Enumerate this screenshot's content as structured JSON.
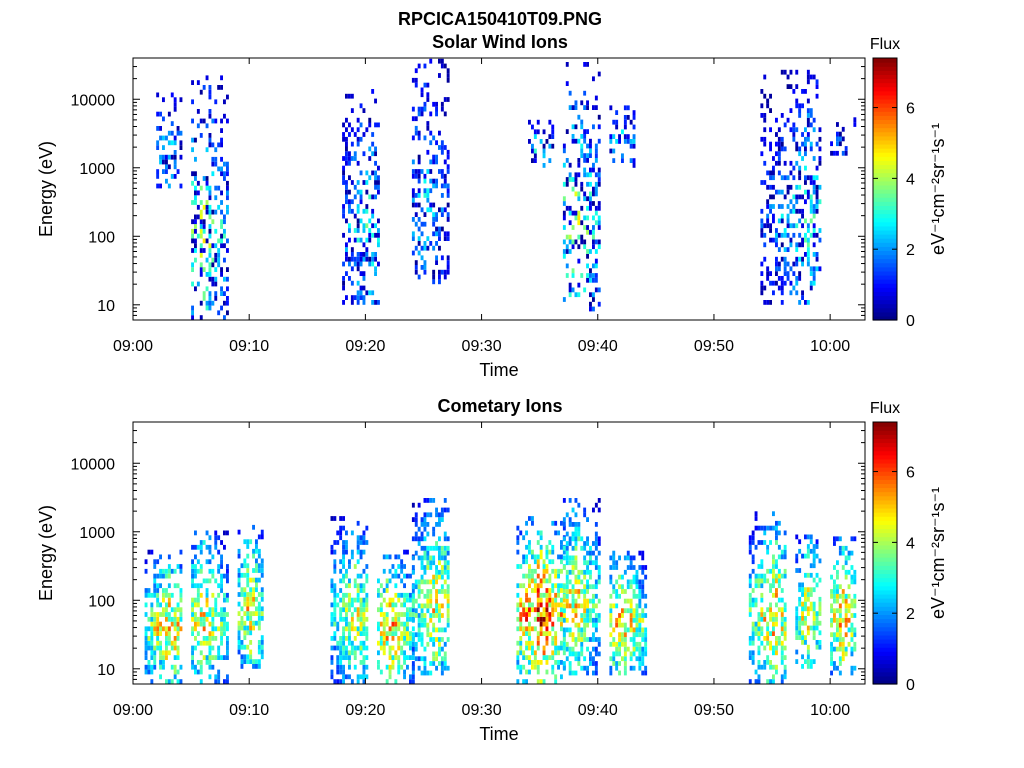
{
  "figure": {
    "filename": "RPCICA150410T09.PNG"
  },
  "colorbar": {
    "title": "Flux",
    "unit_label": "eV⁻¹cm⁻²sr⁻¹s⁻¹",
    "ticks": [
      "0",
      "2",
      "4",
      "6"
    ],
    "range": [
      0,
      7.4
    ],
    "colormap": "jet"
  },
  "chart_data": [
    {
      "type": "heatmap",
      "title": "Solar Wind Ions",
      "xlabel": "Time",
      "ylabel": "Energy (eV)",
      "x_ticks": [
        "09:00",
        "09:10",
        "09:20",
        "09:30",
        "09:40",
        "09:50",
        "10:00"
      ],
      "y_ticks": [
        "10",
        "100",
        "1000",
        "10000"
      ],
      "xlim": [
        "09:00",
        "10:03"
      ],
      "ylim": [
        6,
        40000
      ],
      "y_scale": "log",
      "grid": false,
      "series": [
        {
          "center": "09:06",
          "t_min": "09:05",
          "t_max": "09:08",
          "e_min": 6,
          "e_max": 20000,
          "peak_flux": 4.5
        },
        {
          "center": "09:03",
          "t_min": "09:02",
          "t_max": "09:04",
          "e_min": 500,
          "e_max": 12000,
          "peak_flux": 3
        },
        {
          "center": "09:20",
          "t_min": "09:18",
          "t_max": "09:21",
          "e_min": 10,
          "e_max": 15000,
          "peak_flux": 3.5
        },
        {
          "center": "09:25",
          "t_min": "09:24",
          "t_max": "09:27",
          "e_min": 20,
          "e_max": 40000,
          "peak_flux": 3
        },
        {
          "center": "09:35",
          "t_min": "09:34",
          "t_max": "09:36",
          "e_min": 1000,
          "e_max": 5000,
          "peak_flux": 3.5
        },
        {
          "center": "09:38",
          "t_min": "09:37",
          "t_max": "09:40",
          "e_min": 8,
          "e_max": 30000,
          "peak_flux": 4.5
        },
        {
          "center": "09:42",
          "t_min": "09:41",
          "t_max": "09:43",
          "e_min": 1000,
          "e_max": 8000,
          "peak_flux": 3
        },
        {
          "center": "09:58",
          "t_min": "09:54",
          "t_max": "09:59",
          "e_min": 10,
          "e_max": 30000,
          "peak_flux": 3.5
        },
        {
          "center": "10:01",
          "t_min": "10:00",
          "t_max": "10:02",
          "e_min": 1500,
          "e_max": 5000,
          "peak_flux": 2
        }
      ]
    },
    {
      "type": "heatmap",
      "title": "Cometary Ions",
      "xlabel": "Time",
      "ylabel": "Energy (eV)",
      "x_ticks": [
        "09:00",
        "09:10",
        "09:20",
        "09:30",
        "09:40",
        "09:50",
        "10:00"
      ],
      "y_ticks": [
        "10",
        "100",
        "1000",
        "10000"
      ],
      "xlim": [
        "09:00",
        "10:03"
      ],
      "ylim": [
        6,
        40000
      ],
      "y_scale": "log",
      "grid": false,
      "series": [
        {
          "center": "09:03",
          "t_min": "09:01",
          "t_max": "09:04",
          "e_min": 6,
          "e_max": 500,
          "peak_flux": 6
        },
        {
          "center": "09:06",
          "t_min": "09:05",
          "t_max": "09:08",
          "e_min": 6,
          "e_max": 1000,
          "peak_flux": 5.5
        },
        {
          "center": "09:10",
          "t_min": "09:09",
          "t_max": "09:11",
          "e_min": 10,
          "e_max": 1200,
          "peak_flux": 5.5
        },
        {
          "center": "09:19",
          "t_min": "09:17",
          "t_max": "09:20",
          "e_min": 6,
          "e_max": 1500,
          "peak_flux": 5
        },
        {
          "center": "09:22",
          "t_min": "09:21",
          "t_max": "09:24",
          "e_min": 6,
          "e_max": 500,
          "peak_flux": 6
        },
        {
          "center": "09:26",
          "t_min": "09:24",
          "t_max": "09:27",
          "e_min": 8,
          "e_max": 3000,
          "peak_flux": 5.5
        },
        {
          "center": "09:35",
          "t_min": "09:33",
          "t_max": "09:37",
          "e_min": 6,
          "e_max": 1500,
          "peak_flux": 7.2
        },
        {
          "center": "09:38",
          "t_min": "09:37",
          "t_max": "09:40",
          "e_min": 8,
          "e_max": 3000,
          "peak_flux": 5.5
        },
        {
          "center": "09:42",
          "t_min": "09:41",
          "t_max": "09:44",
          "e_min": 8,
          "e_max": 500,
          "peak_flux": 6
        },
        {
          "center": "09:55",
          "t_min": "09:53",
          "t_max": "09:56",
          "e_min": 6,
          "e_max": 1700,
          "peak_flux": 6
        },
        {
          "center": "09:58",
          "t_min": "09:57",
          "t_max": "09:59",
          "e_min": 10,
          "e_max": 800,
          "peak_flux": 5.5
        },
        {
          "center": "10:01",
          "t_min": "10:00",
          "t_max": "10:02",
          "e_min": 8,
          "e_max": 800,
          "peak_flux": 6
        }
      ]
    }
  ]
}
